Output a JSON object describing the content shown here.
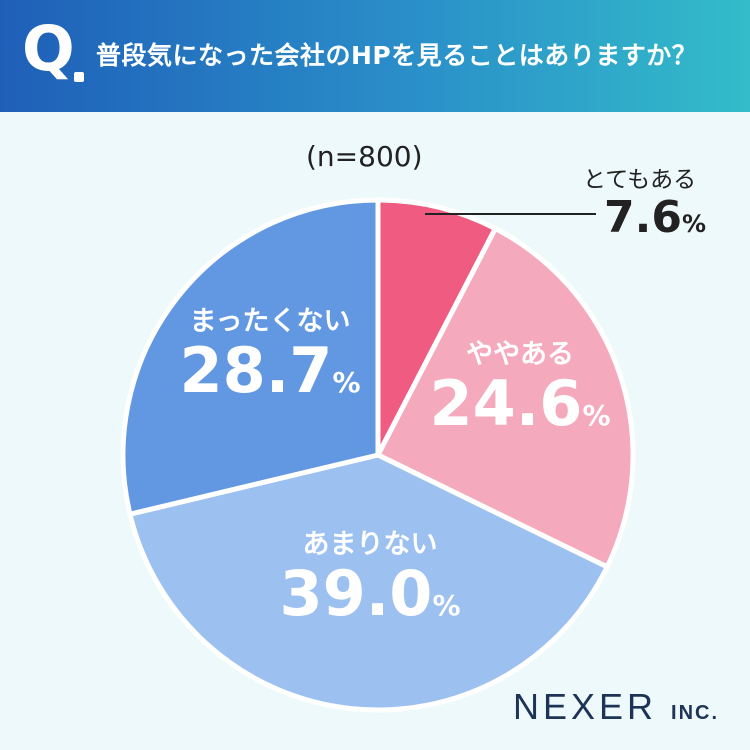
{
  "header": {
    "q_mark": "Q",
    "question": "普段気になった会社のHPを見ることはありますか？"
  },
  "sample_size": "(n=800)",
  "brand": {
    "name": "NEXER",
    "suffix": "INC."
  },
  "chart_data": {
    "type": "pie",
    "title": "普段気になった会社のHPを見ることはありますか？",
    "slices": [
      {
        "label": "とてもある",
        "value": 7.6,
        "display": "7.6",
        "unit": "%",
        "color": "#ef5b81"
      },
      {
        "label": "ややある",
        "value": 24.6,
        "display": "24.6",
        "unit": "%",
        "color": "#f5a9bd"
      },
      {
        "label": "あまりない",
        "value": 39.0,
        "display": "39.0",
        "unit": "%",
        "color": "#9cc0ef"
      },
      {
        "label": "まったくない",
        "value": 28.7,
        "display": "28.7",
        "unit": "%",
        "color": "#6298e2"
      }
    ]
  }
}
